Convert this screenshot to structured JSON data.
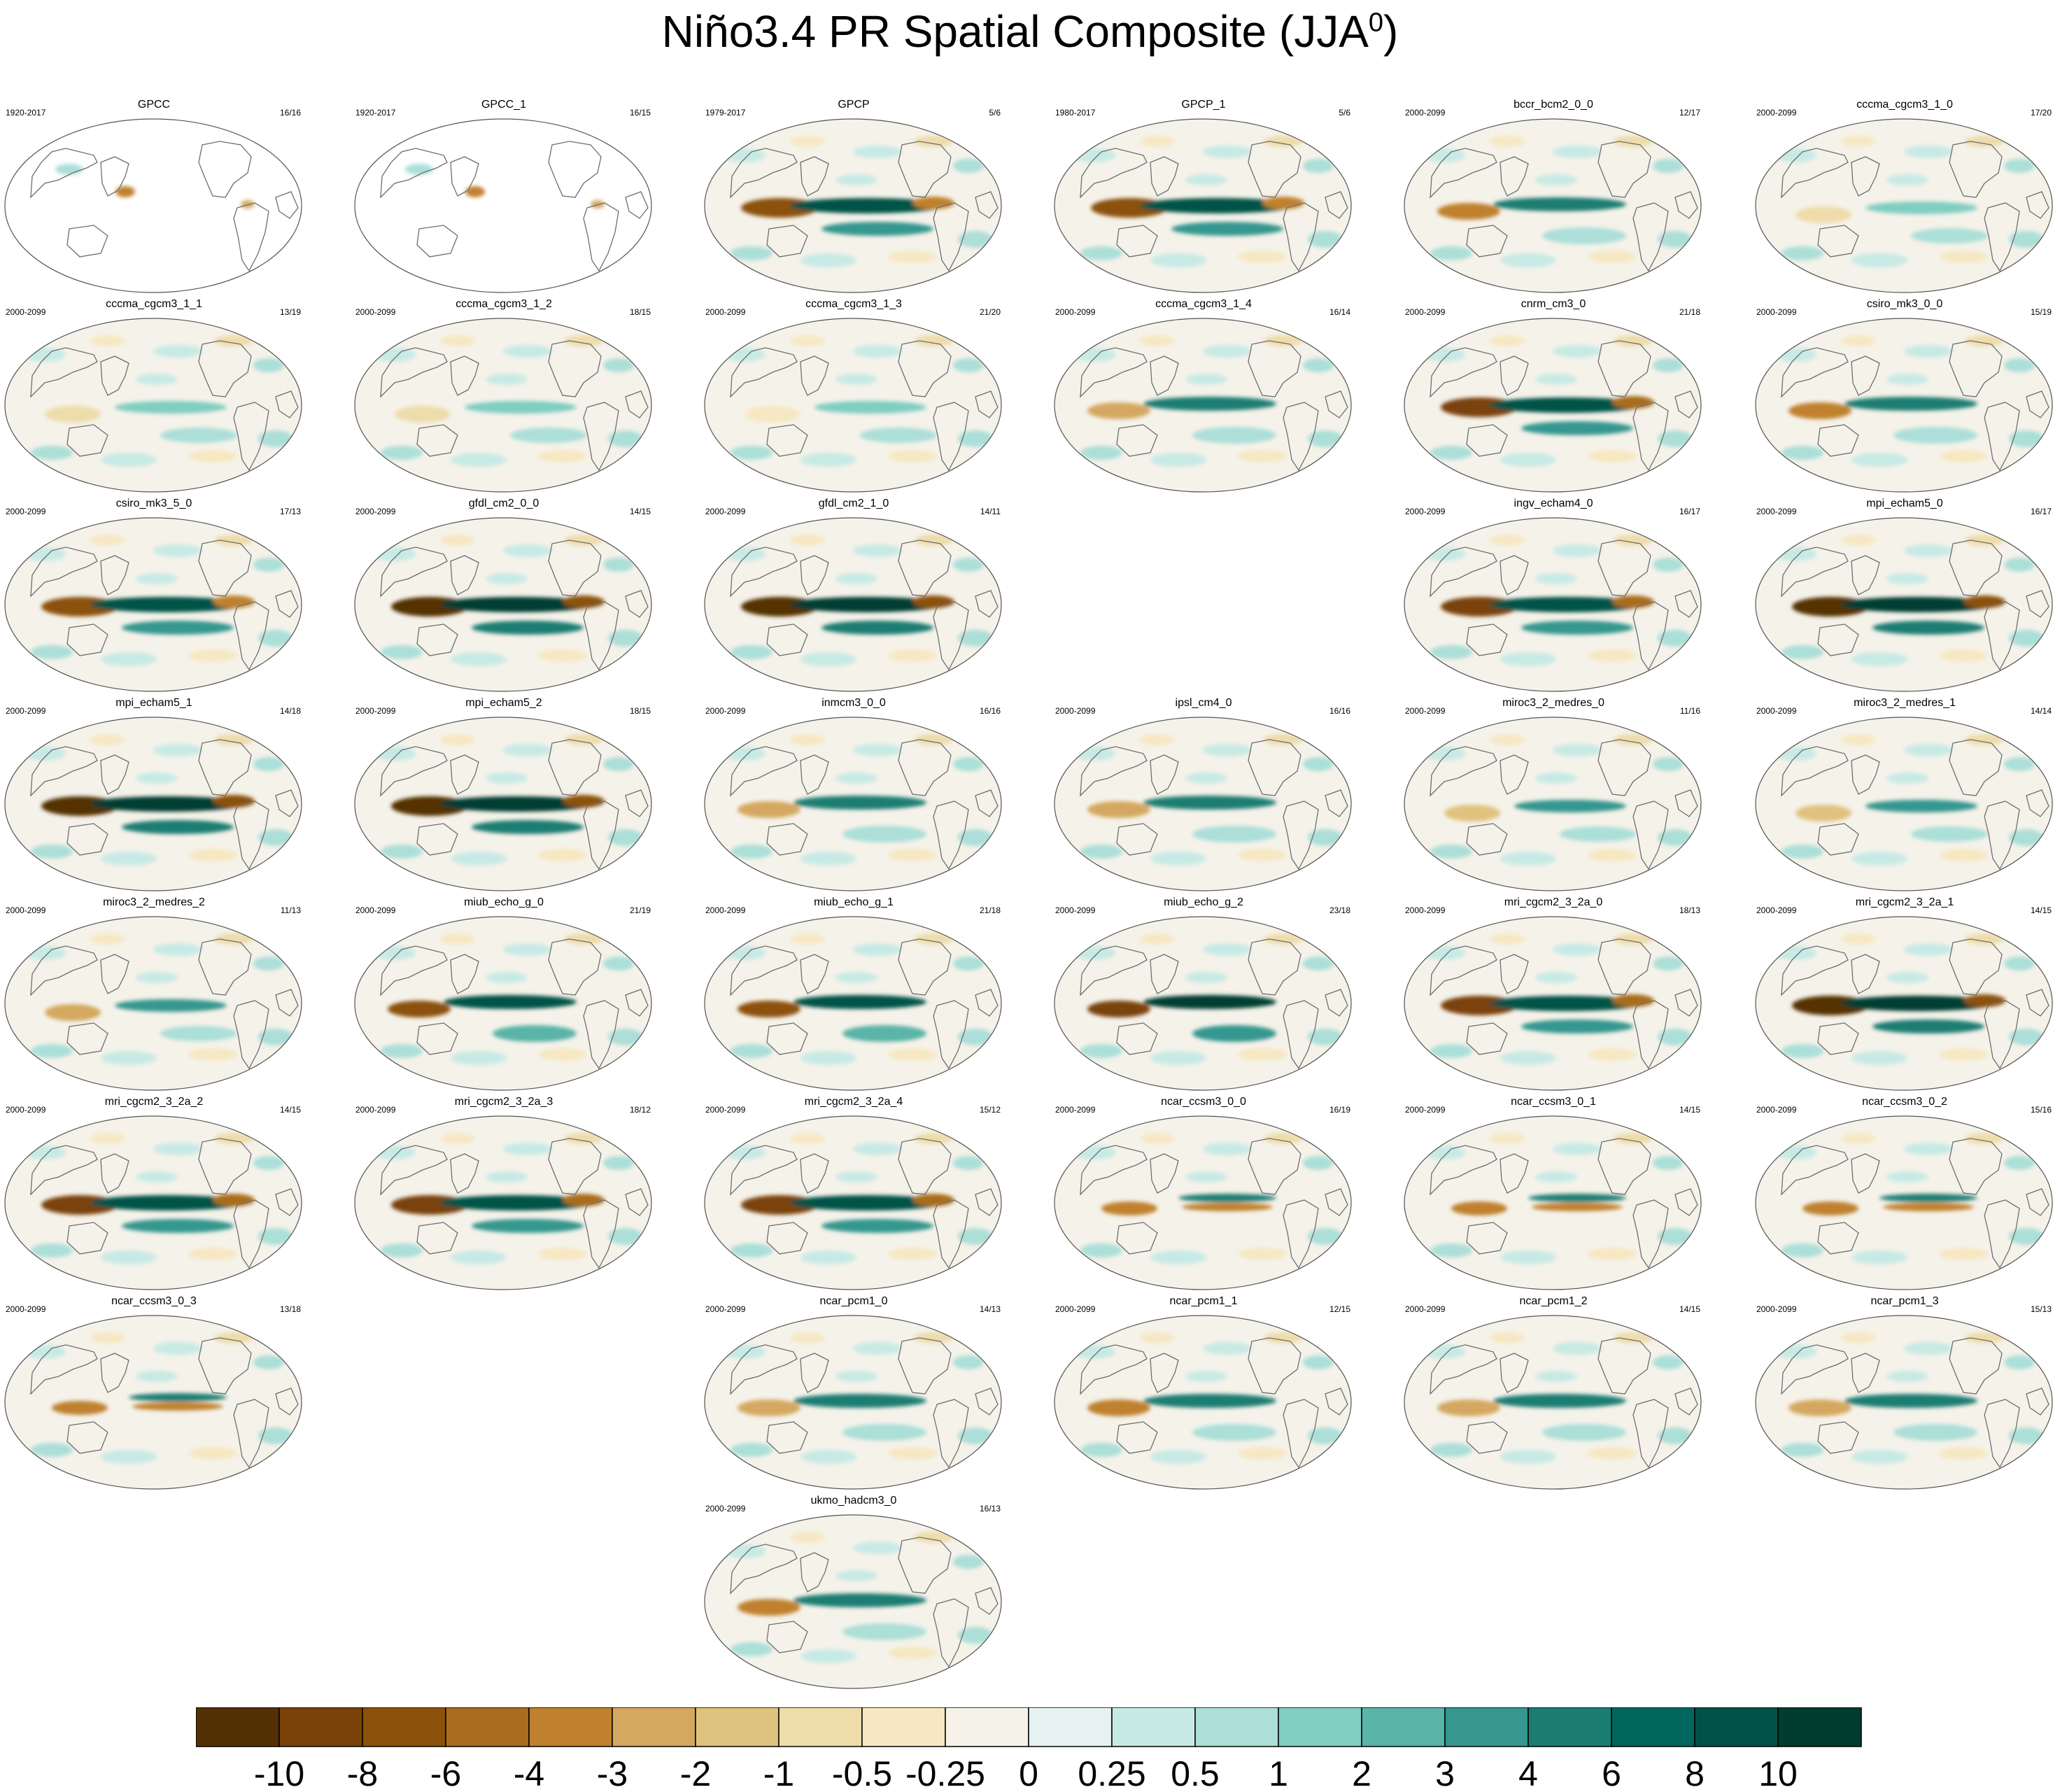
{
  "title": {
    "main": "Niño3.4 PR Spatial Composite (JJA",
    "sup": "0",
    "close": ")"
  },
  "panels": [
    {
      "name": "GPCC",
      "period": "1920-2017",
      "ratio": "16/16",
      "row": 0,
      "col": 0,
      "ocean": false,
      "strength": 0.2,
      "style": "obs"
    },
    {
      "name": "GPCC_1",
      "period": "1920-2017",
      "ratio": "16/15",
      "row": 0,
      "col": 1,
      "ocean": false,
      "strength": 0.2,
      "style": "obs"
    },
    {
      "name": "GPCP",
      "period": "1979-2017",
      "ratio": "5/6",
      "row": 0,
      "col": 2,
      "ocean": true,
      "strength": 0.8,
      "style": "a"
    },
    {
      "name": "GPCP_1",
      "period": "1980-2017",
      "ratio": "5/6",
      "row": 0,
      "col": 3,
      "ocean": true,
      "strength": 0.8,
      "style": "a"
    },
    {
      "name": "bccr_bcm2_0_0",
      "period": "2000-2099",
      "ratio": "12/17",
      "row": 0,
      "col": 4,
      "ocean": true,
      "strength": 0.6,
      "style": "b"
    },
    {
      "name": "cccma_cgcm3_1_0",
      "period": "2000-2099",
      "ratio": "17/20",
      "row": 0,
      "col": 5,
      "ocean": true,
      "strength": 0.35,
      "style": "c"
    },
    {
      "name": "cccma_cgcm3_1_1",
      "period": "2000-2099",
      "ratio": "13/19",
      "row": 1,
      "col": 0,
      "ocean": true,
      "strength": 0.35,
      "style": "c"
    },
    {
      "name": "cccma_cgcm3_1_2",
      "period": "2000-2099",
      "ratio": "18/15",
      "row": 1,
      "col": 1,
      "ocean": true,
      "strength": 0.35,
      "style": "c"
    },
    {
      "name": "cccma_cgcm3_1_3",
      "period": "2000-2099",
      "ratio": "21/20",
      "row": 1,
      "col": 2,
      "ocean": true,
      "strength": 0.3,
      "style": "c"
    },
    {
      "name": "cccma_cgcm3_1_4",
      "period": "2000-2099",
      "ratio": "16/14",
      "row": 1,
      "col": 3,
      "ocean": true,
      "strength": 0.5,
      "style": "b"
    },
    {
      "name": "cnrm_cm3_0",
      "period": "2000-2099",
      "ratio": "21/18",
      "row": 1,
      "col": 4,
      "ocean": true,
      "strength": 0.85,
      "style": "a"
    },
    {
      "name": "csiro_mk3_0_0",
      "period": "2000-2099",
      "ratio": "15/19",
      "row": 1,
      "col": 5,
      "ocean": true,
      "strength": 0.6,
      "style": "b"
    },
    {
      "name": "csiro_mk3_5_0",
      "period": "2000-2099",
      "ratio": "17/13",
      "row": 2,
      "col": 0,
      "ocean": true,
      "strength": 0.8,
      "style": "a"
    },
    {
      "name": "gfdl_cm2_0_0",
      "period": "2000-2099",
      "ratio": "14/15",
      "row": 2,
      "col": 1,
      "ocean": true,
      "strength": 1.0,
      "style": "a"
    },
    {
      "name": "gfdl_cm2_1_0",
      "period": "2000-2099",
      "ratio": "14/11",
      "row": 2,
      "col": 2,
      "ocean": true,
      "strength": 0.95,
      "style": "a"
    },
    {
      "name": "ingv_echam4_0",
      "period": "2000-2099",
      "ratio": "16/17",
      "row": 2,
      "col": 4,
      "ocean": true,
      "strength": 0.85,
      "style": "a"
    },
    {
      "name": "mpi_echam5_0",
      "period": "2000-2099",
      "ratio": "16/17",
      "row": 2,
      "col": 5,
      "ocean": true,
      "strength": 1.0,
      "style": "a"
    },
    {
      "name": "mpi_echam5_1",
      "period": "2000-2099",
      "ratio": "14/18",
      "row": 3,
      "col": 0,
      "ocean": true,
      "strength": 1.0,
      "style": "a"
    },
    {
      "name": "mpi_echam5_2",
      "period": "2000-2099",
      "ratio": "18/15",
      "row": 3,
      "col": 1,
      "ocean": true,
      "strength": 1.0,
      "style": "a"
    },
    {
      "name": "inmcm3_0_0",
      "period": "2000-2099",
      "ratio": "16/16",
      "row": 3,
      "col": 2,
      "ocean": true,
      "strength": 0.55,
      "style": "b"
    },
    {
      "name": "ipsl_cm4_0",
      "period": "2000-2099",
      "ratio": "16/16",
      "row": 3,
      "col": 3,
      "ocean": true,
      "strength": 0.55,
      "style": "b"
    },
    {
      "name": "miroc3_2_medres_0",
      "period": "2000-2099",
      "ratio": "11/16",
      "row": 3,
      "col": 4,
      "ocean": true,
      "strength": 0.5,
      "style": "c"
    },
    {
      "name": "miroc3_2_medres_1",
      "period": "2000-2099",
      "ratio": "14/14",
      "row": 3,
      "col": 5,
      "ocean": true,
      "strength": 0.55,
      "style": "c"
    },
    {
      "name": "miroc3_2_medres_2",
      "period": "2000-2099",
      "ratio": "11/13",
      "row": 4,
      "col": 0,
      "ocean": true,
      "strength": 0.6,
      "style": "c"
    },
    {
      "name": "miub_echo_g_0",
      "period": "2000-2099",
      "ratio": "21/19",
      "row": 4,
      "col": 1,
      "ocean": true,
      "strength": 0.85,
      "style": "b"
    },
    {
      "name": "miub_echo_g_1",
      "period": "2000-2099",
      "ratio": "21/18",
      "row": 4,
      "col": 2,
      "ocean": true,
      "strength": 0.9,
      "style": "b"
    },
    {
      "name": "miub_echo_g_2",
      "period": "2000-2099",
      "ratio": "23/18",
      "row": 4,
      "col": 3,
      "ocean": true,
      "strength": 0.95,
      "style": "b"
    },
    {
      "name": "mri_cgcm2_3_2a_0",
      "period": "2000-2099",
      "ratio": "18/13",
      "row": 4,
      "col": 4,
      "ocean": true,
      "strength": 0.9,
      "style": "a"
    },
    {
      "name": "mri_cgcm2_3_2a_1",
      "period": "2000-2099",
      "ratio": "14/15",
      "row": 4,
      "col": 5,
      "ocean": true,
      "strength": 0.95,
      "style": "a"
    },
    {
      "name": "mri_cgcm2_3_2a_2",
      "period": "2000-2099",
      "ratio": "14/15",
      "row": 5,
      "col": 0,
      "ocean": true,
      "strength": 0.85,
      "style": "a"
    },
    {
      "name": "mri_cgcm2_3_2a_3",
      "period": "2000-2099",
      "ratio": "18/12",
      "row": 5,
      "col": 1,
      "ocean": true,
      "strength": 0.85,
      "style": "a"
    },
    {
      "name": "mri_cgcm2_3_2a_4",
      "period": "2000-2099",
      "ratio": "15/12",
      "row": 5,
      "col": 2,
      "ocean": true,
      "strength": 0.85,
      "style": "a"
    },
    {
      "name": "ncar_ccsm3_0_0",
      "period": "2000-2099",
      "ratio": "16/19",
      "row": 5,
      "col": 3,
      "ocean": true,
      "strength": 0.6,
      "style": "d"
    },
    {
      "name": "ncar_ccsm3_0_1",
      "period": "2000-2099",
      "ratio": "14/15",
      "row": 5,
      "col": 4,
      "ocean": true,
      "strength": 0.6,
      "style": "d"
    },
    {
      "name": "ncar_ccsm3_0_2",
      "period": "2000-2099",
      "ratio": "15/16",
      "row": 5,
      "col": 5,
      "ocean": true,
      "strength": 0.6,
      "style": "d"
    },
    {
      "name": "ncar_ccsm3_0_3",
      "period": "2000-2099",
      "ratio": "13/18",
      "row": 6,
      "col": 0,
      "ocean": true,
      "strength": 0.6,
      "style": "d"
    },
    {
      "name": "ncar_pcm1_0",
      "period": "2000-2099",
      "ratio": "14/13",
      "row": 6,
      "col": 2,
      "ocean": true,
      "strength": 0.55,
      "style": "b"
    },
    {
      "name": "ncar_pcm1_1",
      "period": "2000-2099",
      "ratio": "12/15",
      "row": 6,
      "col": 3,
      "ocean": true,
      "strength": 0.6,
      "style": "b"
    },
    {
      "name": "ncar_pcm1_2",
      "period": "2000-2099",
      "ratio": "14/15",
      "row": 6,
      "col": 4,
      "ocean": true,
      "strength": 0.55,
      "style": "b"
    },
    {
      "name": "ncar_pcm1_3",
      "period": "2000-2099",
      "ratio": "15/13",
      "row": 6,
      "col": 5,
      "ocean": true,
      "strength": 0.55,
      "style": "b"
    },
    {
      "name": "ukmo_hadcm3_0",
      "period": "2000-2099",
      "ratio": "16/13",
      "row": 7,
      "col": 2,
      "ocean": true,
      "strength": 0.6,
      "style": "b"
    }
  ],
  "colorbar": {
    "colors": [
      "#543005",
      "#7a4208",
      "#8c510a",
      "#a86d1f",
      "#bf812d",
      "#d4a860",
      "#dfc27d",
      "#eedcaa",
      "#f6e8c3",
      "#f5f2ea",
      "#e6f2f0",
      "#c7eae5",
      "#abdfd8",
      "#80cdc1",
      "#5ab4a8",
      "#35978f",
      "#1b7d72",
      "#01665e",
      "#015246",
      "#003c30"
    ],
    "labels": [
      "-10",
      "-8",
      "-6",
      "-4",
      "-3",
      "-2",
      "-1",
      "-0.5",
      "-0.25",
      "0",
      "0.25",
      "0.5",
      "1",
      "2",
      "3",
      "4",
      "6",
      "8",
      "10"
    ]
  },
  "chart_data": {
    "type": "heatmap",
    "title": "Niño3.4 PR Spatial Composite (JJA0)",
    "levels": [
      -10,
      -8,
      -6,
      -4,
      -3,
      -2,
      -1,
      -0.5,
      -0.25,
      0,
      0.25,
      0.5,
      1,
      2,
      3,
      4,
      6,
      8,
      10
    ],
    "panel_count": 41
  }
}
